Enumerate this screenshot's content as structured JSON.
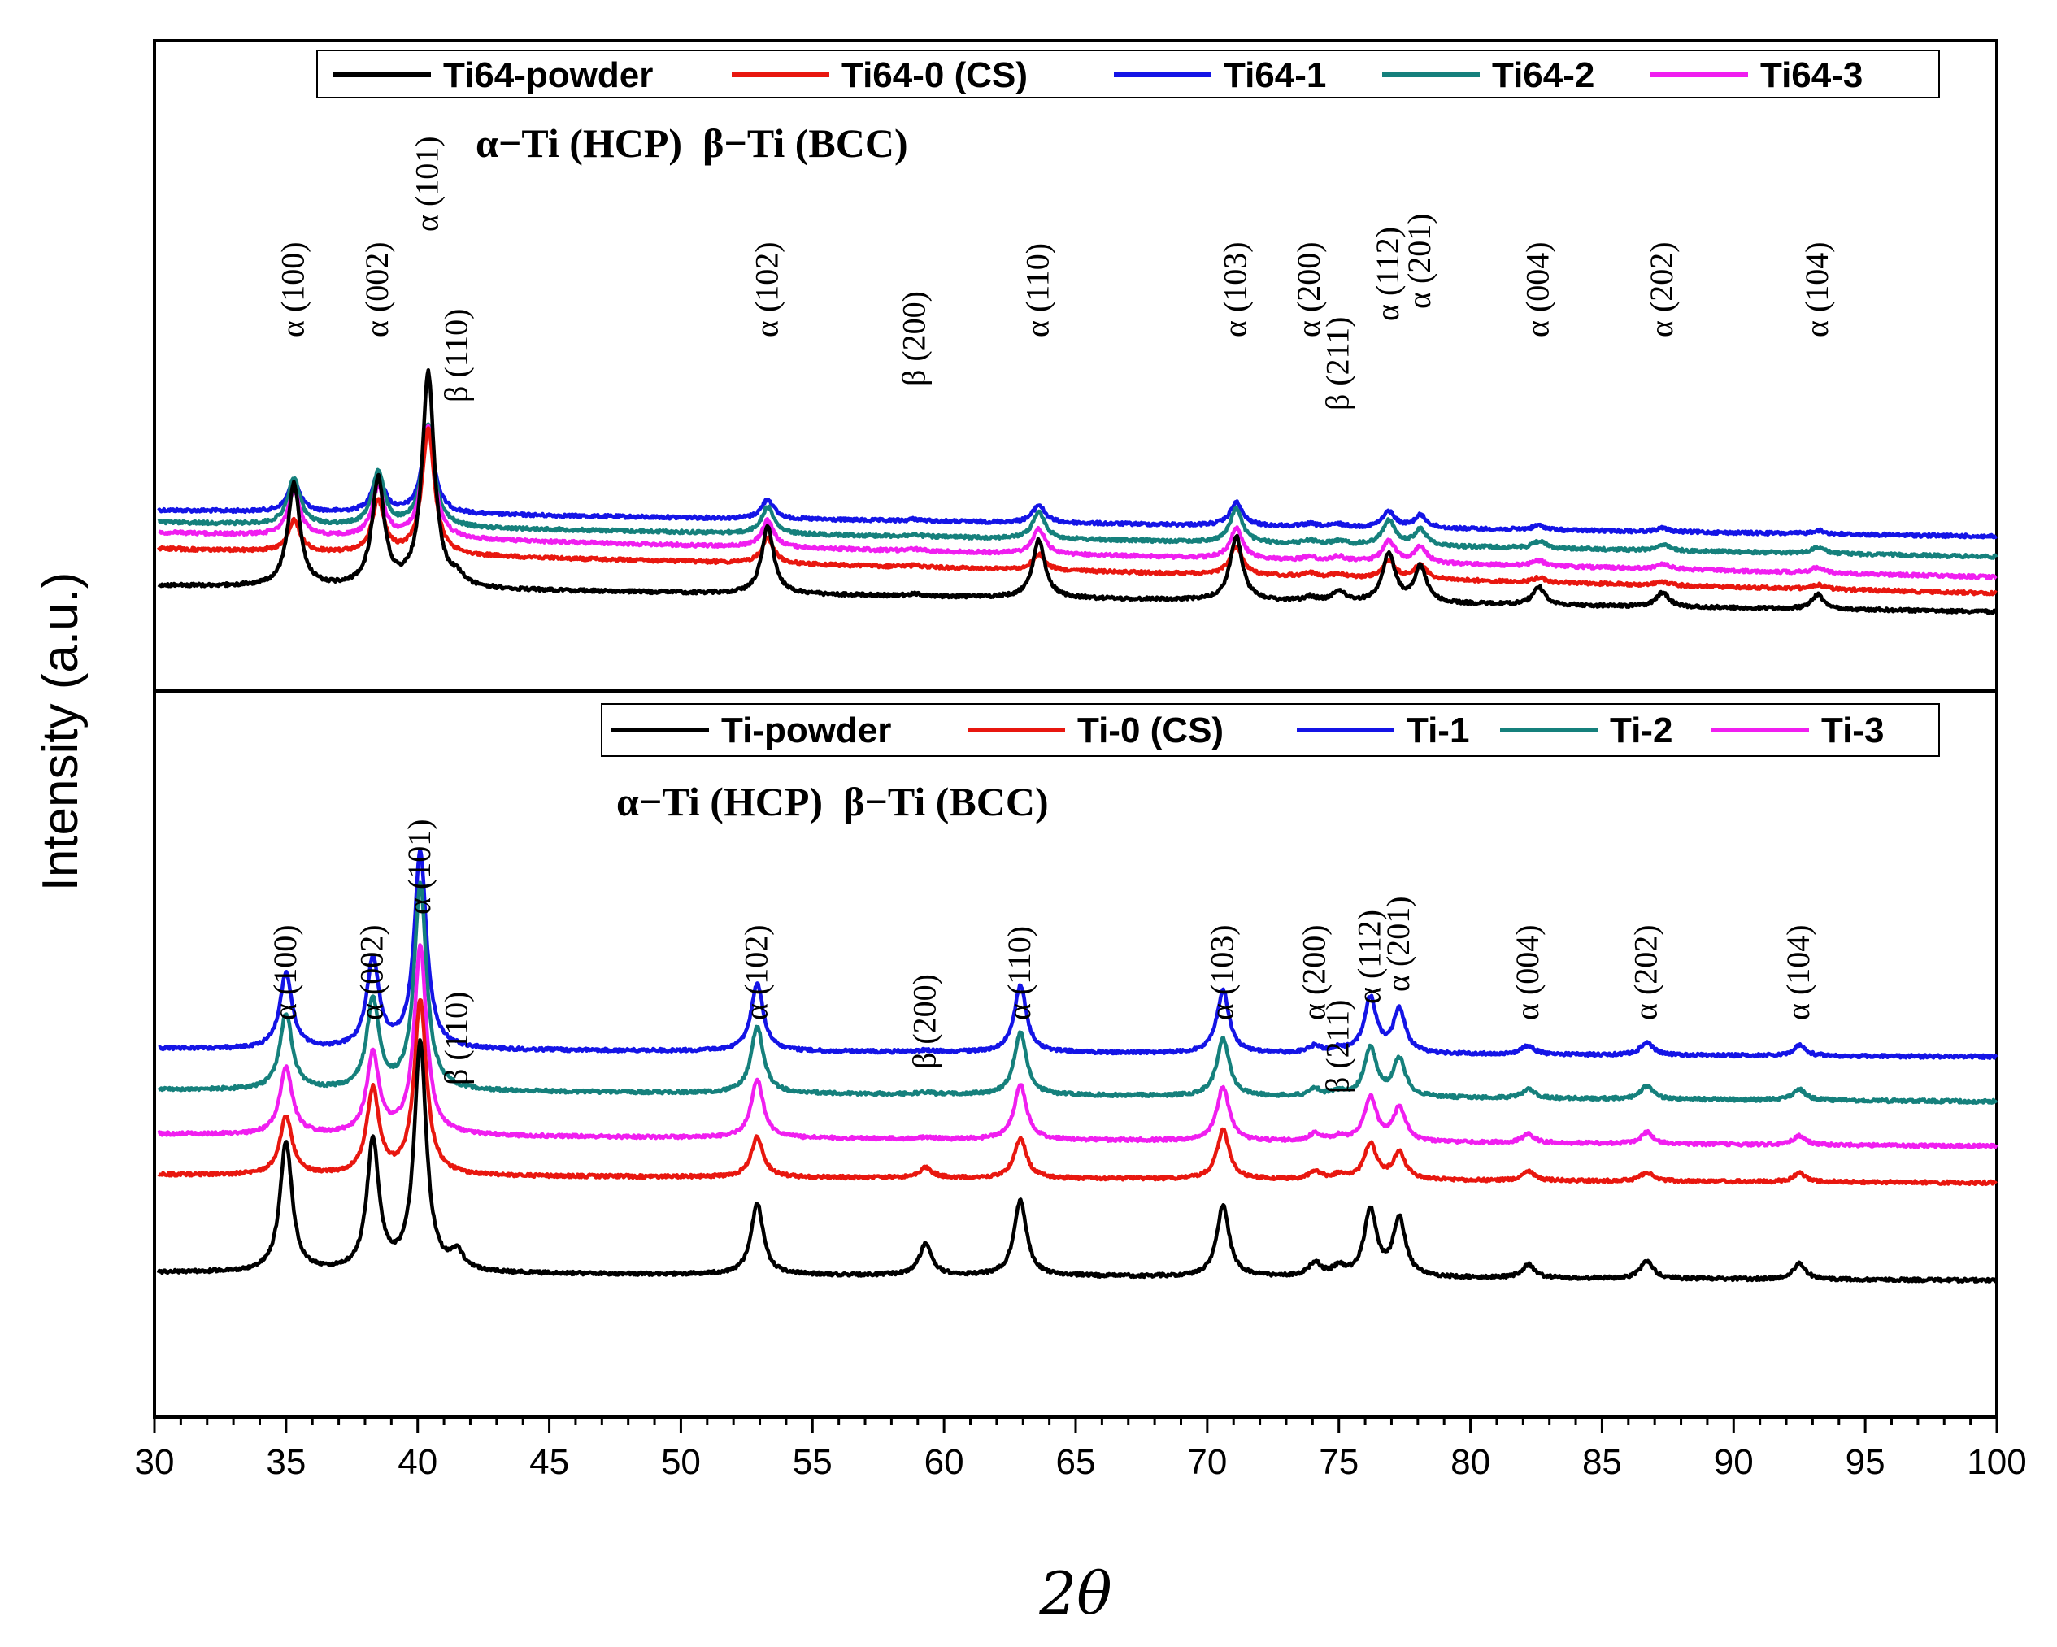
{
  "chart_data": {
    "type": "line",
    "xlabel": "2θ",
    "ylabel": "Intensity (a.u.)",
    "xlim": [
      30,
      100
    ],
    "xticks": [
      30,
      35,
      40,
      45,
      50,
      55,
      60,
      65,
      70,
      75,
      80,
      85,
      90,
      95,
      100
    ],
    "colors": {
      "powder": "#000000",
      "cs": "#e8170f",
      "s1": "#1414e6",
      "s2": "#15807c",
      "s3": "#f01ef0"
    },
    "panels": [
      {
        "name": "top",
        "phase_label": "α−Ti (HCP)  β−Ti (BCC)",
        "legend": [
          "Ti64-powder",
          "Ti64-0 (CS)",
          "Ti64-1",
          "Ti64-2",
          "Ti64-3"
        ],
        "peak_positions": [
          35.3,
          38.5,
          40.4,
          41.5,
          53.3,
          58.9,
          63.6,
          71.1,
          73.9,
          75.0,
          76.9,
          78.1,
          82.6,
          87.3,
          93.2
        ],
        "peak_labels": [
          "α (100)",
          "α (002)",
          "α (101)",
          "β (110)",
          "α (102)",
          "β (200)",
          "α (110)",
          "α (103)",
          "α (200)",
          "β (211)",
          "α (112)",
          "α (201)",
          "α (004)",
          "α (202)",
          "α (104)"
        ],
        "series": [
          {
            "name": "Ti64-1",
            "color_key": "s1",
            "baseline_start": 0.89,
            "baseline_end": 0.76,
            "peak_heights": [
              0.34,
              0.42,
              0.95,
              0.0,
              0.22,
              0.02,
              0.2,
              0.26,
              0.03,
              0.03,
              0.18,
              0.14,
              0.05,
              0.04,
              0.04
            ]
          },
          {
            "name": "Ti64-2",
            "color_key": "s2",
            "baseline_start": 0.83,
            "baseline_end": 0.66,
            "peak_heights": [
              0.52,
              0.6,
              1.15,
              0.0,
              0.3,
              0.02,
              0.3,
              0.38,
              0.04,
              0.04,
              0.28,
              0.18,
              0.08,
              0.07,
              0.07
            ]
          },
          {
            "name": "Ti64-3",
            "color_key": "s3",
            "baseline_start": 0.78,
            "baseline_end": 0.56,
            "peak_heights": [
              0.5,
              0.55,
              1.25,
              0.0,
              0.3,
              0.02,
              0.28,
              0.34,
              0.04,
              0.05,
              0.24,
              0.18,
              0.06,
              0.06,
              0.06
            ]
          },
          {
            "name": "Ti64-0 (CS)",
            "color_key": "cs",
            "baseline_start": 0.7,
            "baseline_end": 0.48,
            "peak_heights": [
              0.35,
              0.58,
              1.4,
              0.0,
              0.28,
              0.02,
              0.18,
              0.32,
              0.04,
              0.04,
              0.2,
              0.16,
              0.05,
              0.04,
              0.05
            ]
          },
          {
            "name": "Ti64-powder",
            "color_key": "powder",
            "baseline_start": 0.52,
            "baseline_end": 0.39,
            "peak_heights": [
              1.15,
              1.2,
              2.4,
              0.1,
              0.75,
              0.02,
              0.65,
              0.72,
              0.05,
              0.12,
              0.55,
              0.4,
              0.2,
              0.16,
              0.16
            ]
          }
        ]
      },
      {
        "name": "bottom",
        "phase_label": "α−Ti (HCP)  β−Ti (BCC)",
        "legend": [
          "Ti-powder",
          "Ti-0 (CS)",
          "Ti-1",
          "Ti-2",
          "Ti-3"
        ],
        "peak_positions": [
          35.0,
          38.3,
          40.1,
          41.5,
          52.9,
          59.3,
          62.9,
          70.6,
          74.1,
          75.0,
          76.2,
          77.3,
          82.2,
          86.7,
          92.5
        ],
        "peak_labels": [
          "α (100)",
          "α (002)",
          "α (101)",
          "β (110)",
          "α (102)",
          "β (200)",
          "α (110)",
          "α (103)",
          "α (200)",
          "β (211)",
          "α (112)",
          "α (201)",
          "α (004)",
          "α (202)",
          "α (104)"
        ],
        "series": [
          {
            "name": "Ti-1",
            "color_key": "s1",
            "baseline_start": 0.9,
            "baseline_end": 0.88,
            "peak_heights": [
              0.85,
              1.0,
              2.2,
              0.0,
              0.75,
              0.02,
              0.75,
              0.7,
              0.08,
              0.05,
              0.62,
              0.48,
              0.1,
              0.15,
              0.12
            ]
          },
          {
            "name": "Ti-2",
            "color_key": "s2",
            "baseline_start": 0.8,
            "baseline_end": 0.77,
            "peak_heights": [
              0.85,
              1.0,
              2.3,
              0.0,
              0.75,
              0.02,
              0.7,
              0.65,
              0.08,
              0.05,
              0.55,
              0.42,
              0.1,
              0.15,
              0.12
            ]
          },
          {
            "name": "Ti-3",
            "color_key": "s3",
            "baseline_start": 0.69,
            "baseline_end": 0.66,
            "peak_heights": [
              0.75,
              0.9,
              2.1,
              0.0,
              0.65,
              0.02,
              0.62,
              0.6,
              0.08,
              0.05,
              0.5,
              0.38,
              0.1,
              0.13,
              0.1
            ]
          },
          {
            "name": "Ti-0 (CS)",
            "color_key": "cs",
            "baseline_start": 0.59,
            "baseline_end": 0.57,
            "peak_heights": [
              0.65,
              0.95,
              1.95,
              0.0,
              0.45,
              0.12,
              0.45,
              0.55,
              0.08,
              0.05,
              0.4,
              0.3,
              0.1,
              0.1,
              0.1
            ]
          },
          {
            "name": "Ti-powder",
            "color_key": "powder",
            "baseline_start": 0.35,
            "baseline_end": 0.33,
            "peak_heights": [
              1.45,
              1.45,
              2.55,
              0.2,
              0.8,
              0.35,
              0.85,
              0.8,
              0.15,
              0.1,
              0.75,
              0.65,
              0.15,
              0.2,
              0.18
            ]
          }
        ]
      }
    ]
  }
}
